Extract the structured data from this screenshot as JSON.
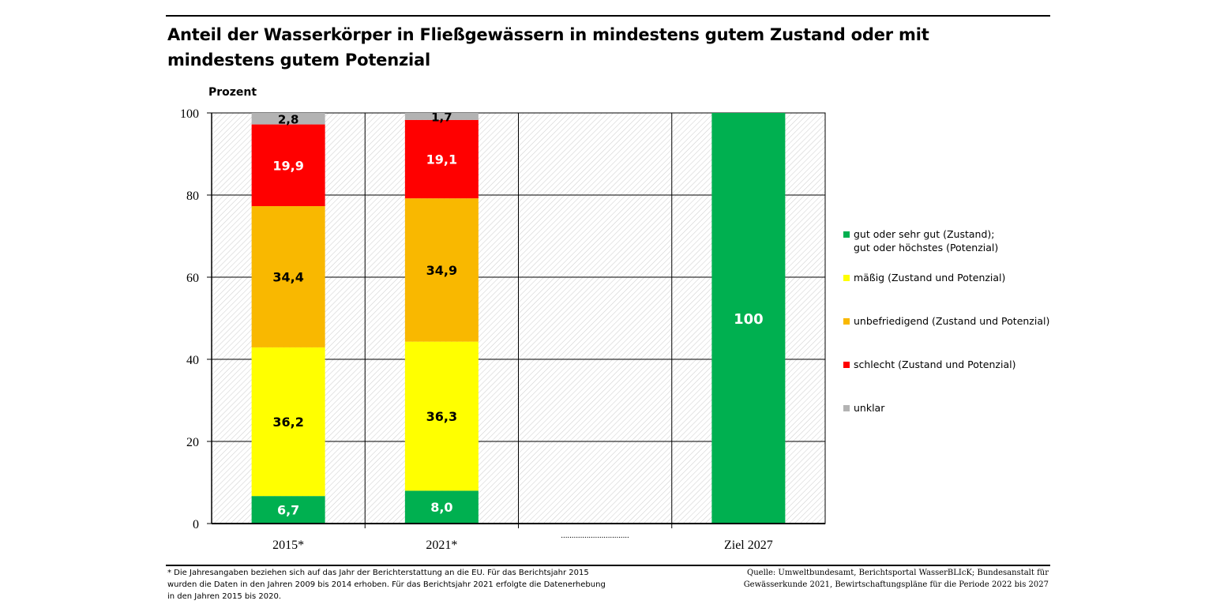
{
  "title": "Anteil der Wasserkörper in Fließgewässern in mindestens gutem Zustand oder mit mindestens gutem Potenzial",
  "chart_data": {
    "type": "bar",
    "stacked": true,
    "ylabel": "Prozent",
    "ylim": [
      0,
      100
    ],
    "yticks": [
      0,
      20,
      40,
      60,
      80,
      100
    ],
    "grid": true,
    "categories": [
      "2015*",
      "2021*",
      "",
      "Ziel 2027"
    ],
    "placeholder_category_label": "................................",
    "series": [
      {
        "name": "gut oder sehr gut (Zustand);\ngut oder höchstes (Potenzial)",
        "color": "#00b050",
        "values": [
          6.7,
          8.0,
          null,
          100
        ],
        "labels": [
          "6,7",
          "8,0",
          "",
          "100"
        ],
        "label_color": "#ffffff"
      },
      {
        "name": "mäßig (Zustand und Potenzial)",
        "color": "#ffff00",
        "values": [
          36.2,
          36.3,
          null,
          null
        ],
        "labels": [
          "36,2",
          "36,3",
          "",
          ""
        ],
        "label_color": "#000000"
      },
      {
        "name": "unbefriedigend (Zustand und Potenzial)",
        "color": "#f9b800",
        "values": [
          34.4,
          34.9,
          null,
          null
        ],
        "labels": [
          "34,4",
          "34,9",
          "",
          ""
        ],
        "label_color": "#000000"
      },
      {
        "name": "schlecht (Zustand und Potenzial)",
        "color": "#ff0000",
        "values": [
          19.9,
          19.1,
          null,
          null
        ],
        "labels": [
          "19,9",
          "19,1",
          "",
          ""
        ],
        "label_color": "#ffffff"
      },
      {
        "name": "unklar",
        "color": "#b3b3b3",
        "values": [
          2.8,
          1.7,
          null,
          null
        ],
        "labels": [
          "2,8",
          "1,7",
          "",
          ""
        ],
        "label_color": "#000000"
      }
    ]
  },
  "legend": [
    {
      "label": "gut oder sehr gut (Zustand);\ngut oder höchstes (Potenzial)",
      "color": "#00b050"
    },
    {
      "label": "mäßig (Zustand und Potenzial)",
      "color": "#ffff00"
    },
    {
      "label": "unbefriedigend (Zustand und Potenzial)",
      "color": "#f9b800"
    },
    {
      "label": "schlecht (Zustand und Potenzial)",
      "color": "#ff0000"
    },
    {
      "label": "unklar",
      "color": "#b3b3b3"
    }
  ],
  "footnote": "* Die Jahresangaben beziehen sich auf das Jahr der Berichterstattung an die EU. Für das Berichtsjahr 2015 wurden die Daten in den Jahren 2009 bis 2014 erhoben. Für das Berichtsjahr 2021 erfolgte die Datenerhebung in den Jahren 2015 bis 2020.",
  "source": "Quelle: Umweltbundesamt, Berichtsportal WasserBLIcK; Bundesanstalt für Gewässerkunde 2021, Bewirtschaftungspläne für die Periode 2022 bis 2027"
}
